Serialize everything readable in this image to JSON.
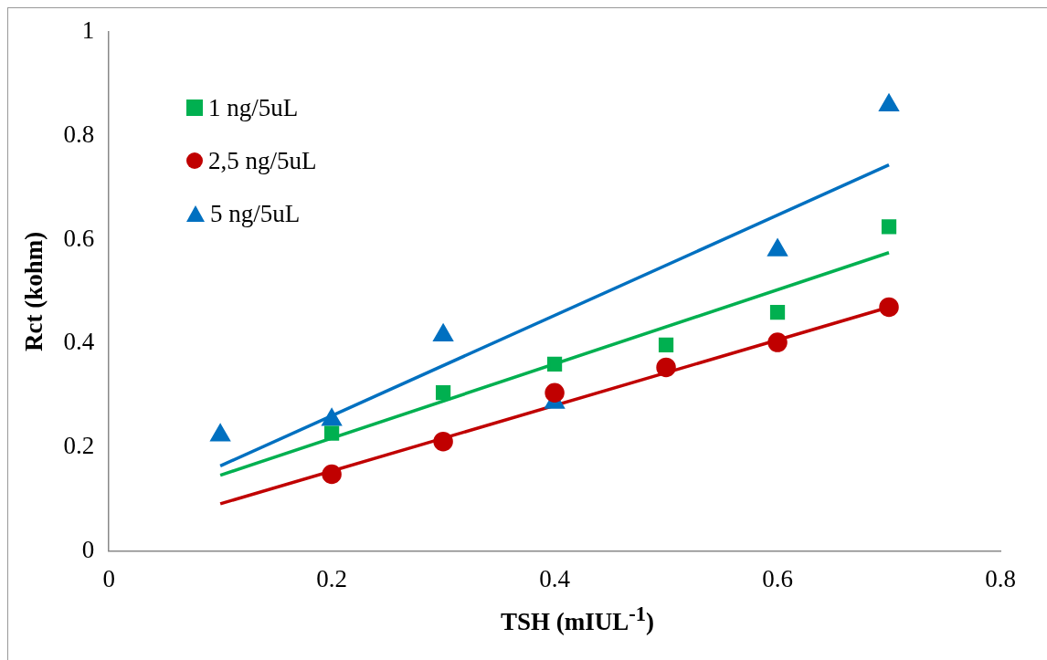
{
  "chart_data": {
    "type": "scatter",
    "xlabel": "TSH (mIUL$^{-1}$)",
    "ylabel": "Rct (kohm)",
    "xlim": [
      0,
      0.8
    ],
    "xticks": [
      0,
      0.2,
      0.4,
      0.6,
      0.8
    ],
    "ylim": [
      0,
      1
    ],
    "yticks": [
      0,
      0.2,
      0.4,
      0.6,
      0.8,
      1
    ],
    "grid": false,
    "legend": "top left",
    "series": [
      {
        "name": "1 ng/5uL",
        "color": "#00b050",
        "marker": "square",
        "x": [
          0.2,
          0.3,
          0.4,
          0.5,
          0.6,
          0.7
        ],
        "values": [
          0.227,
          0.305,
          0.36,
          0.397,
          0.46,
          0.625
        ]
      },
      {
        "name": "2,5 ng/5uL",
        "color": "#c00000",
        "marker": "circle",
        "x": [
          0.2,
          0.3,
          0.4,
          0.5,
          0.6,
          0.7
        ],
        "values": [
          0.148,
          0.211,
          0.305,
          0.354,
          0.402,
          0.47
        ]
      },
      {
        "name": "5 ng/5uL",
        "color": "#0070c0",
        "marker": "triangle",
        "x": [
          0.1,
          0.2,
          0.3,
          0.4,
          0.6,
          0.7
        ],
        "values": [
          0.223,
          0.253,
          0.416,
          0.286,
          0.58,
          0.859
        ]
      },
      {
        "type": "line",
        "color": "#00b050",
        "marker": "none",
        "x": [
          0.1,
          0.7
        ],
        "values": [
          0.146,
          0.575
        ]
      },
      {
        "type": "line",
        "color": "#c00000",
        "marker": "none",
        "x": [
          0.1,
          0.7
        ],
        "values": [
          0.091,
          0.47
        ]
      },
      {
        "type": "line",
        "color": "#0070c0",
        "marker": "none",
        "x": [
          0.1,
          0.7
        ],
        "values": [
          0.164,
          0.744
        ]
      }
    ]
  }
}
